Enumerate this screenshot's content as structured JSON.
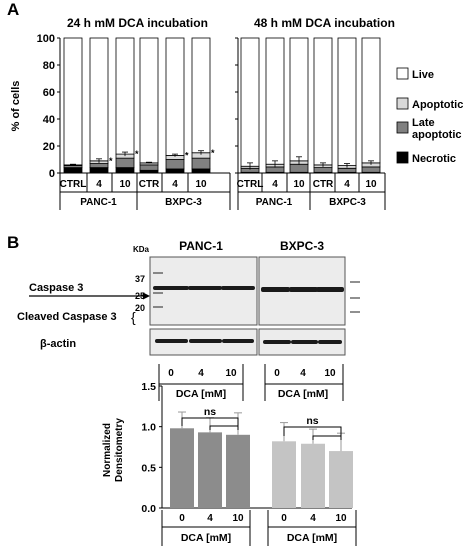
{
  "panel_a": {
    "label": "A",
    "left_title": "24 h mM DCA incubation",
    "right_title": "48 h mM DCA incubation",
    "ylabel": "% of cells",
    "yticks": [
      "0",
      "20",
      "40",
      "60",
      "80",
      "100"
    ],
    "left_xticks": [
      "CTRL",
      "4",
      "10",
      "CTR",
      "4",
      "10"
    ],
    "right_xticks": [
      "CTRL",
      "4",
      "10",
      "CTR",
      "4",
      "10"
    ],
    "groups": [
      "PANC-1",
      "BXPC-3"
    ],
    "legend": [
      "Live",
      "Apoptotic",
      "Late apoptotic",
      "Necrotic"
    ],
    "legend_lines": [
      [
        "Live"
      ],
      [
        "Apoptotic"
      ],
      [
        "Late",
        "apoptotic"
      ],
      [
        "Necrotic"
      ]
    ],
    "star": "*"
  },
  "panel_b": {
    "label": "B",
    "kda": "KDa",
    "mw_markers": [
      "37",
      "25",
      "20"
    ],
    "blot_titles": [
      "PANC-1",
      "BXPC-3"
    ],
    "caspase3": "Caspase 3",
    "cleaved_caspase3": "Cleaved Caspase 3",
    "actin": "β-actin",
    "dose_labels": [
      "0",
      "4",
      "10"
    ],
    "dose_axis": "DCA [mM]",
    "dens_ylabel": [
      "Normalized",
      "Densitometry"
    ],
    "dens_yticks": [
      "0.0",
      "0.5",
      "1.0",
      "1.5"
    ],
    "ns": "ns"
  },
  "colors": {
    "live": "#ffffff",
    "apoptotic": "#d9d9d9",
    "late_apoptotic": "#808080",
    "necrotic": "#000000",
    "panc_bar": "#8c8c8c",
    "bxpc_bar": "#c4c4c4",
    "blot_bg": "#ececec",
    "band": "#1a1a1a"
  },
  "chart_data": [
    {
      "type": "bar",
      "stacked": true,
      "title": "24 h mM DCA incubation",
      "ylabel": "% of cells",
      "ylim": [
        0,
        100
      ],
      "categories": [
        "CTRL",
        "4",
        "10",
        "CTR",
        "4",
        "10"
      ],
      "groups": [
        {
          "name": "PANC-1",
          "categories": [
            "CTRL",
            "4",
            "10"
          ]
        },
        {
          "name": "BXPC-3",
          "categories": [
            "CTR",
            "4",
            "10"
          ]
        }
      ],
      "series": [
        {
          "name": "Necrotic",
          "values": [
            4,
            4,
            4,
            2,
            3,
            3
          ]
        },
        {
          "name": "Late apoptotic",
          "values": [
            1.5,
            3,
            7,
            4,
            7,
            8
          ]
        },
        {
          "name": "Apoptotic",
          "values": [
            0.5,
            2,
            3,
            1.5,
            3,
            4
          ]
        },
        {
          "name": "Live",
          "values": [
            94,
            91,
            86,
            92.5,
            87,
            85
          ]
        }
      ],
      "errors": [
        0.5,
        1.5,
        1.5,
        0.5,
        1,
        1.5
      ],
      "significant": [
        false,
        true,
        true,
        false,
        true,
        true
      ],
      "legend": "right"
    },
    {
      "type": "bar",
      "stacked": true,
      "title": "48 h mM DCA incubation",
      "ylim": [
        0,
        100
      ],
      "categories": [
        "CTRL",
        "4",
        "10",
        "CTR",
        "4",
        "10"
      ],
      "groups": [
        {
          "name": "PANC-1",
          "categories": [
            "CTRL",
            "4",
            "10"
          ]
        },
        {
          "name": "BXPC-3",
          "categories": [
            "CTR",
            "4",
            "10"
          ]
        }
      ],
      "series": [
        {
          "name": "Necrotic",
          "values": [
            0.5,
            0.5,
            0.5,
            0.5,
            0.5,
            0.5
          ]
        },
        {
          "name": "Late apoptotic",
          "values": [
            3,
            4,
            6,
            3.5,
            3,
            4
          ]
        },
        {
          "name": "Apoptotic",
          "values": [
            1.5,
            2,
            2.5,
            2,
            2,
            3
          ]
        },
        {
          "name": "Live",
          "values": [
            95,
            93.5,
            91,
            94,
            94.5,
            92.5
          ]
        }
      ],
      "errors": [
        2.5,
        2.5,
        3,
        1.5,
        1.5,
        1.5
      ],
      "legend": "right"
    },
    {
      "type": "bar",
      "ylabel": "Normalized Densitometry",
      "xlabel": "DCA [mM]",
      "ylim": [
        0,
        1.5
      ],
      "categories": [
        "0",
        "4",
        "10",
        "0",
        "4",
        "10"
      ],
      "groups": [
        {
          "name": "PANC-1",
          "categories": [
            "0",
            "4",
            "10"
          ]
        },
        {
          "name": "BXPC-3",
          "categories": [
            "0",
            "4",
            "10"
          ]
        }
      ],
      "values": [
        0.98,
        0.93,
        0.9,
        0.82,
        0.79,
        0.7
      ],
      "errors": [
        0.2,
        0.18,
        0.27,
        0.23,
        0.18,
        0.22
      ],
      "annotations": [
        "ns",
        "ns"
      ]
    }
  ]
}
